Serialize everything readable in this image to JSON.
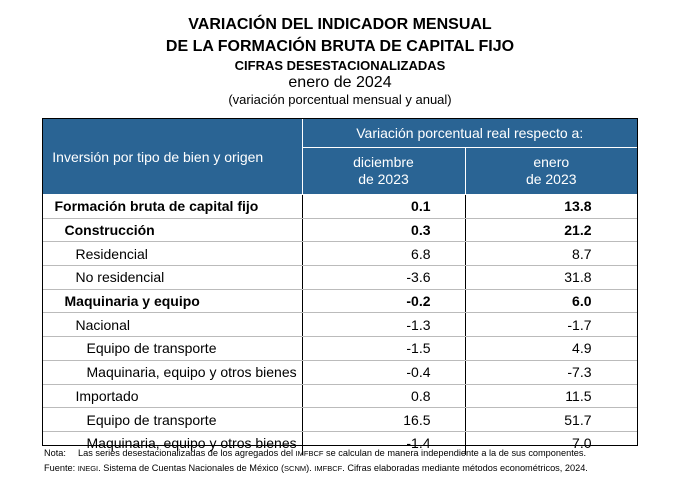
{
  "title": {
    "line1": "VARIACIÓN DEL INDICADOR MENSUAL",
    "line2": "DE LA FORMACIÓN BRUTA DE CAPITAL FIJO",
    "line3": "CIFRAS DESESTACIONALIZADAS",
    "line4": "enero de 2024",
    "line5": "(variación porcentual mensual y anual)"
  },
  "table": {
    "header_left": "Inversión por tipo de bien y origen",
    "header_span": "Variación porcentual real respecto a:",
    "col1_line1": "diciembre",
    "col1_line2": "de 2023",
    "col2_line1": "enero",
    "col2_line2": "de 2023",
    "rows": [
      {
        "label": "Formación bruta de capital fijo",
        "v1": "0.1",
        "v2": "13.8"
      },
      {
        "label": "Construcción",
        "v1": "0.3",
        "v2": "21.2"
      },
      {
        "label": "Residencial",
        "v1": "6.8",
        "v2": "8.7"
      },
      {
        "label": "No residencial",
        "v1": "-3.6",
        "v2": "31.8"
      },
      {
        "label": "Maquinaria y equipo",
        "v1": "-0.2",
        "v2": "6.0"
      },
      {
        "label": "Nacional",
        "v1": "-1.3",
        "v2": "-1.7"
      },
      {
        "label": "Equipo de transporte",
        "v1": "-1.5",
        "v2": "4.9"
      },
      {
        "label": "Maquinaria, equipo y otros bienes",
        "v1": "-0.4",
        "v2": "-7.3"
      },
      {
        "label": "Importado",
        "v1": "0.8",
        "v2": "11.5"
      },
      {
        "label": "Equipo de transporte",
        "v1": "16.5",
        "v2": "51.7"
      },
      {
        "label": "Maquinaria, equipo y otros bienes",
        "v1": "-1.4",
        "v2": "7.0"
      }
    ]
  },
  "notes": {
    "nota_label": "Nota:",
    "nota_a": "Las series desestacionalizadas de los agregados del ",
    "nota_sc": "IMFBCF",
    "nota_b": " se calculan de manera independiente a la de sus componentes.",
    "fuente_label": "Fuente:",
    "fuente_sc1": "INEGI",
    "fuente_a": ". Sistema de Cuentas Nacionales de México (",
    "fuente_sc2": "SCNM",
    "fuente_b": "). ",
    "fuente_sc3": "IMFBCF",
    "fuente_c": ". Cifras elaboradas mediante métodos econométricos, 2024."
  }
}
